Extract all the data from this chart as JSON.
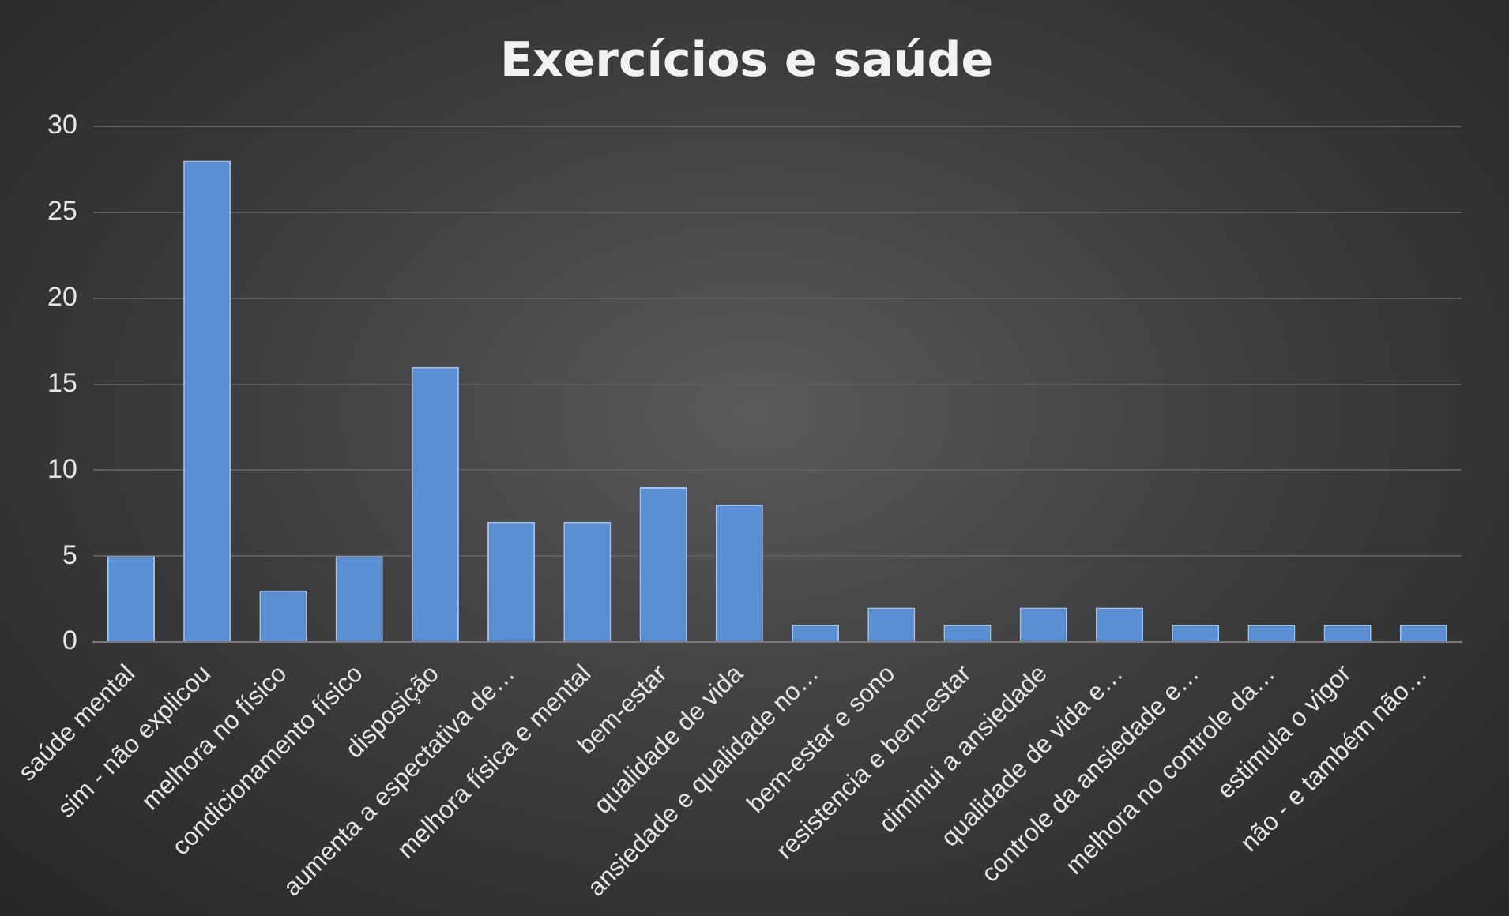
{
  "chart_data": {
    "type": "bar",
    "title": "Exercícios e saúde",
    "categories": [
      "saúde mental",
      "sim - não explicou",
      "melhora no físico",
      "condicionamento físico",
      "disposição",
      "aumenta a espectativa de…",
      "melhora física e mental",
      "bem-estar",
      "qualidade de vida",
      "ansiedade e qualidade no…",
      "bem-estar e sono",
      "resistencia e bem-estar",
      "diminui a ansiedade",
      "qualidade de vida e…",
      "controle da ansiedade e…",
      "melhora no controle da…",
      "estimula o vigor",
      "não - e também não…"
    ],
    "values": [
      5,
      28,
      3,
      5,
      16,
      7,
      7,
      9,
      8,
      1,
      2,
      1,
      2,
      2,
      1,
      1,
      1,
      1
    ],
    "color": "#5b8fd4",
    "ylim": [
      0,
      30
    ],
    "yticks": [
      0,
      5,
      10,
      15,
      20,
      25,
      30
    ],
    "grid": "y",
    "legend": false
  }
}
